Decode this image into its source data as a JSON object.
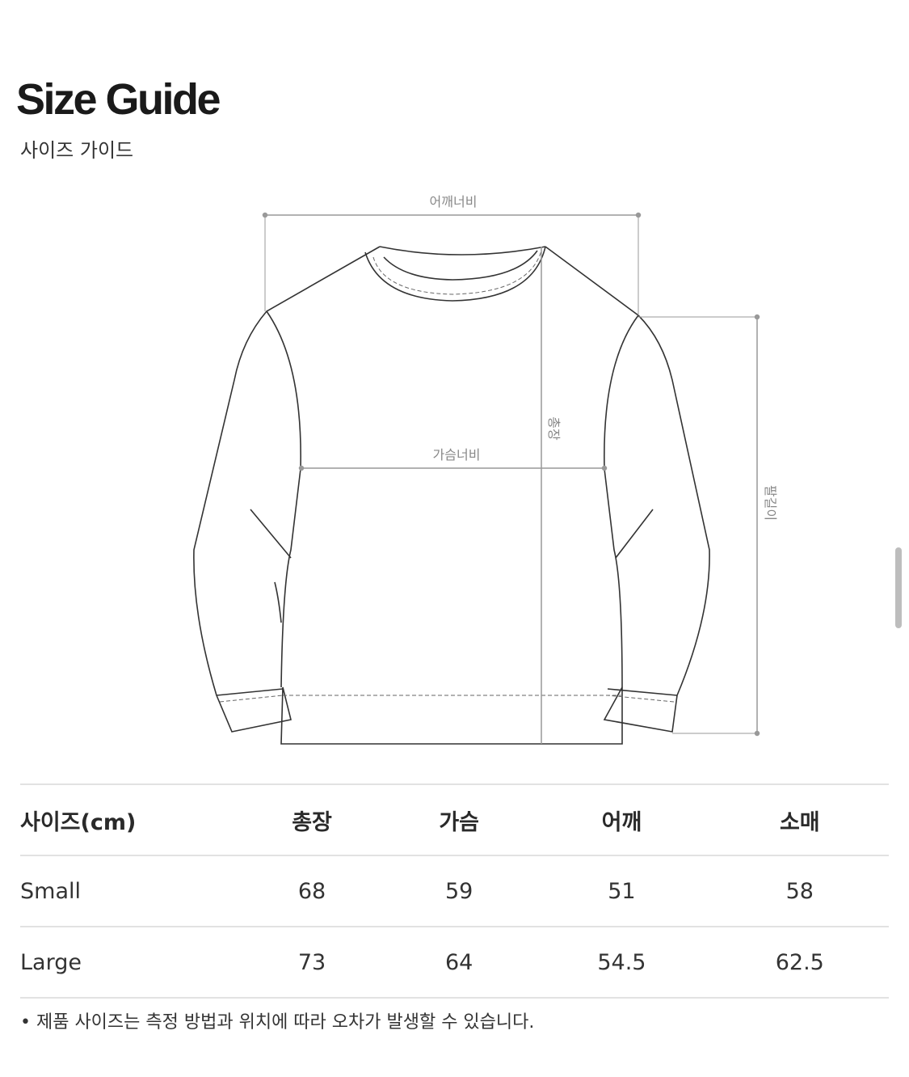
{
  "header": {
    "title": "Size Guide",
    "subtitle": "사이즈 가이드"
  },
  "diagram": {
    "shoulder_label": "어깨너비",
    "chest_label": "가슴너비",
    "length_label": "총장",
    "sleeve_label": "팔길이"
  },
  "table": {
    "headers": [
      "사이즈(cm)",
      "총장",
      "가슴",
      "어깨",
      "소매"
    ],
    "rows": [
      [
        "Small",
        "68",
        "59",
        "51",
        "58"
      ],
      [
        "Large",
        "73",
        "64",
        "54.5",
        "62.5"
      ]
    ]
  },
  "note": "• 제품 사이즈는 측정 방법과 위치에 따라 오차가 발생할 수 있습니다."
}
